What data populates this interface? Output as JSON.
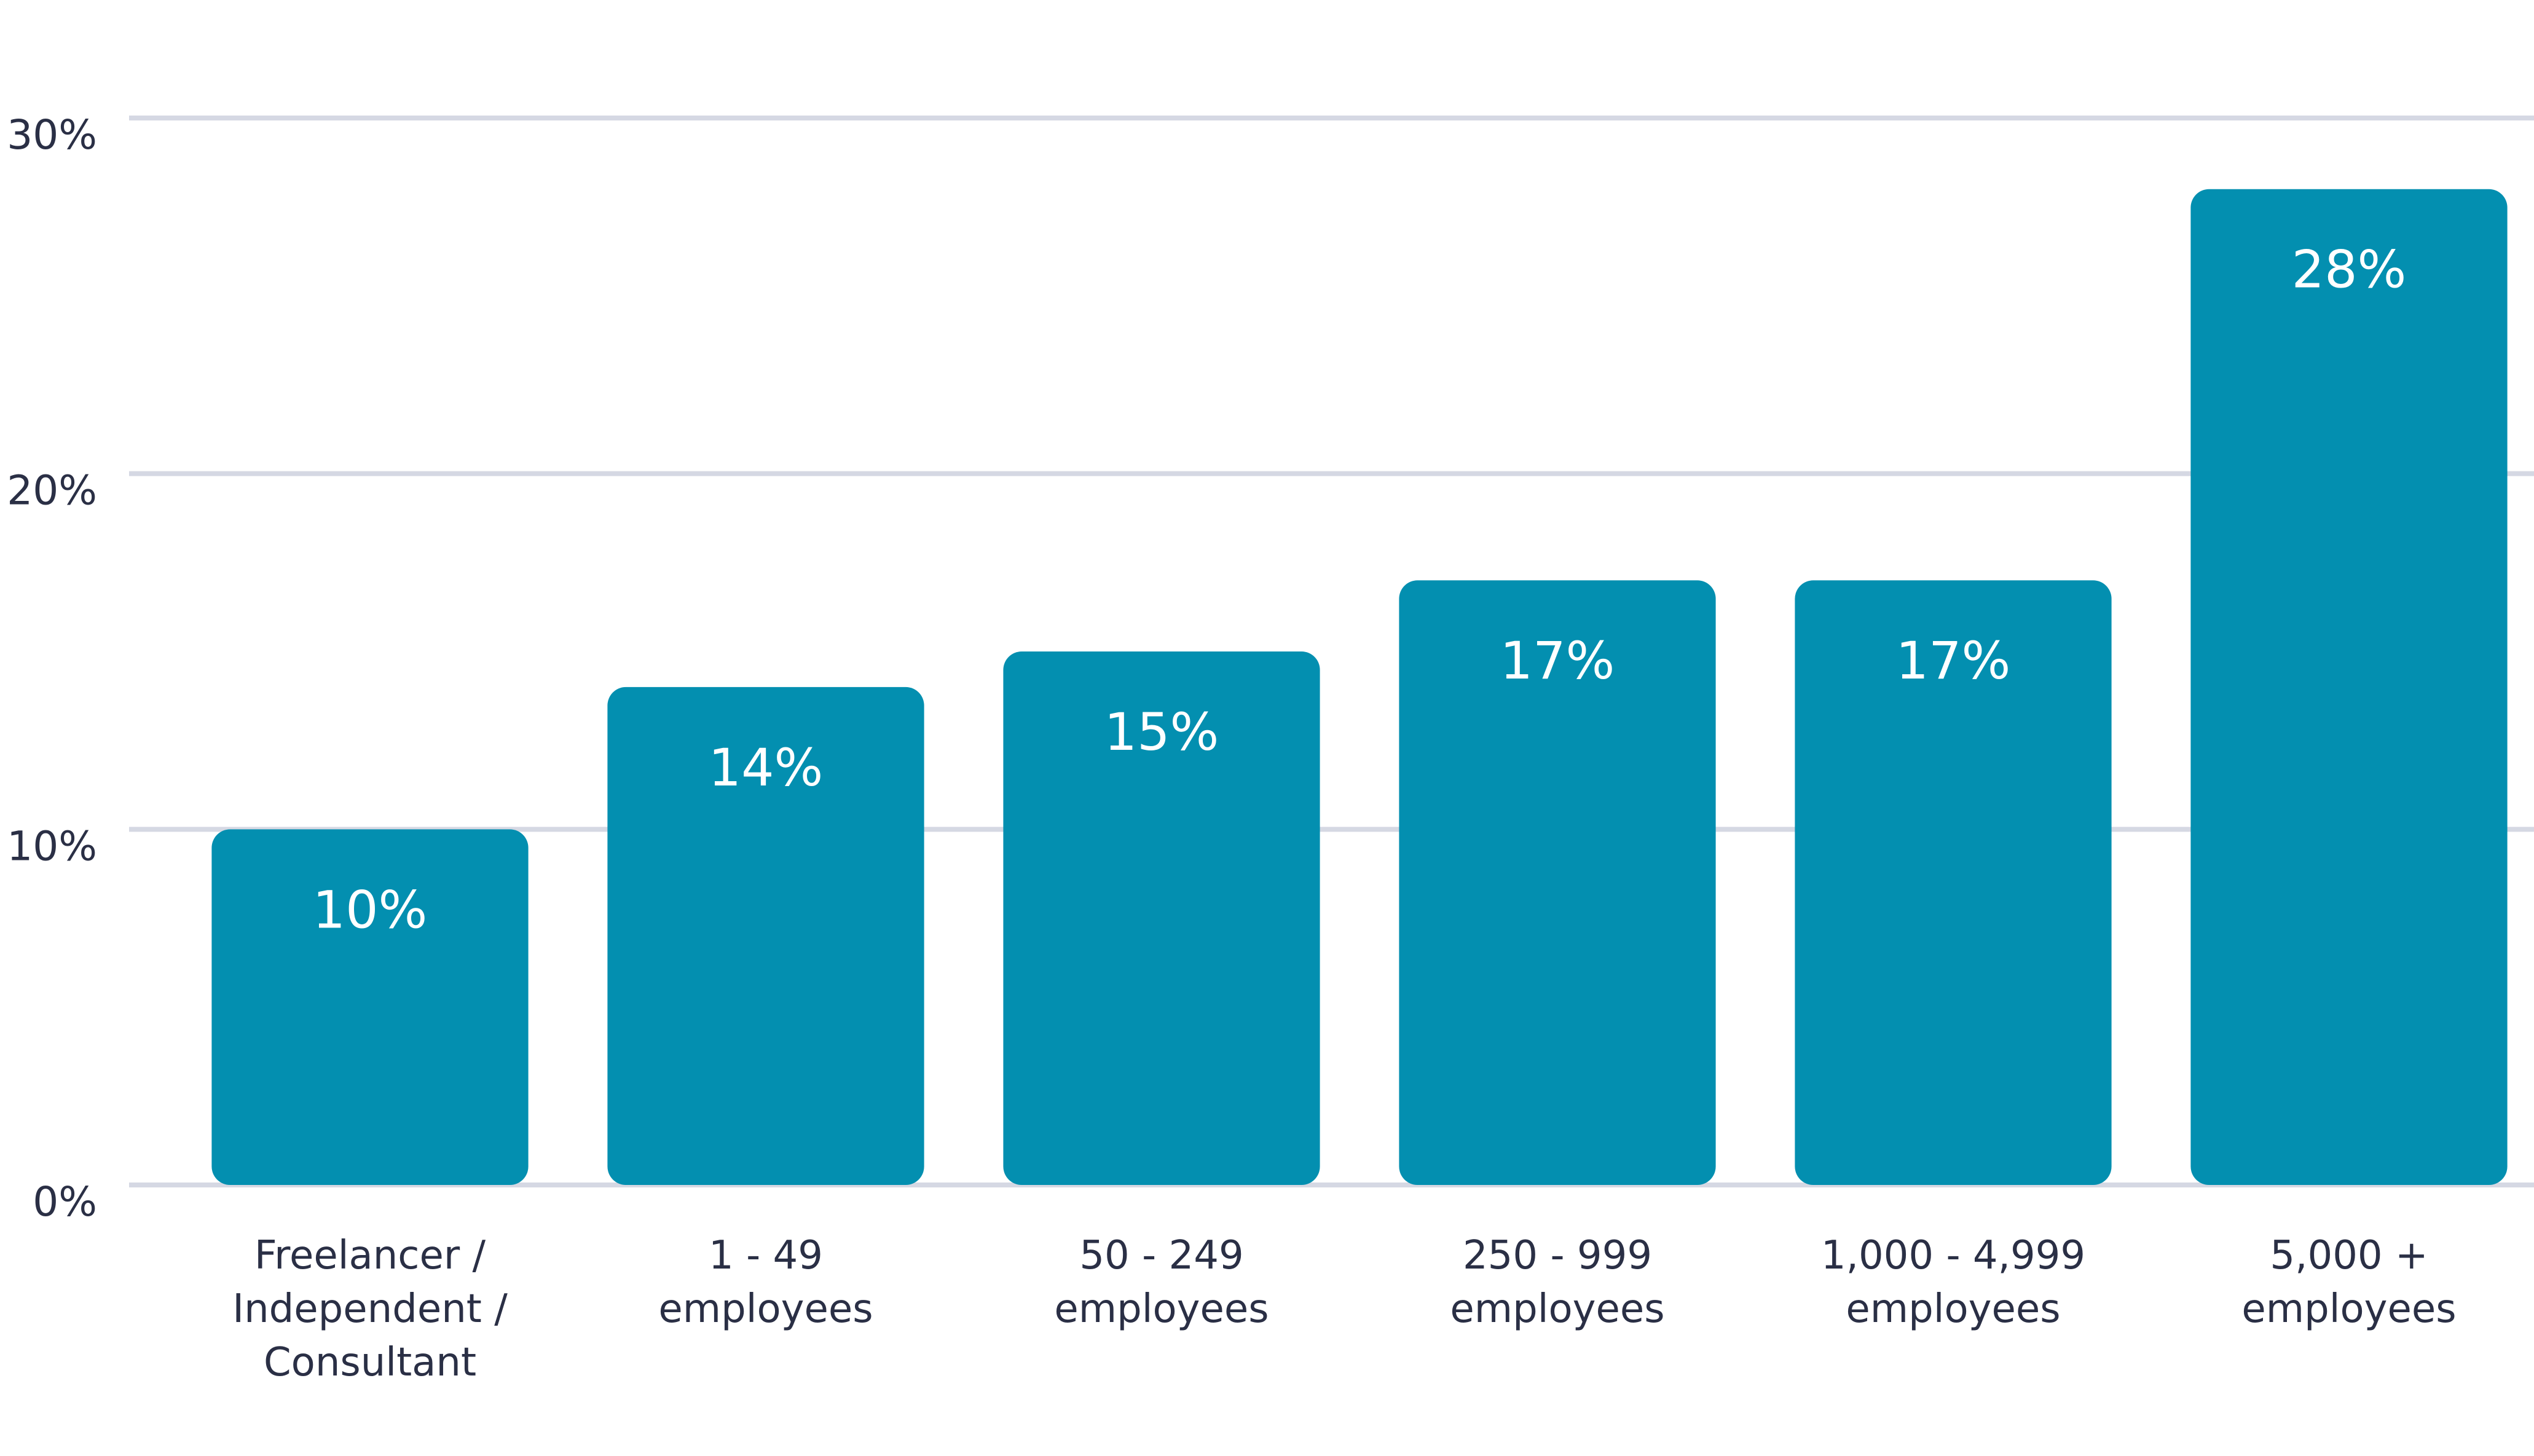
{
  "chart_data": {
    "type": "bar",
    "categories": [
      "Freelancer / Independent / Consultant",
      "1 - 49 employees",
      "50 - 249 employees",
      "250 - 999 employees",
      "1,000 - 4,999 employees",
      "5,000 + employees"
    ],
    "values": [
      10,
      14,
      15,
      17,
      17,
      28
    ],
    "value_labels": [
      "10%",
      "14%",
      "15%",
      "17%",
      "17%",
      "28%"
    ],
    "color": "#038fb0",
    "ylim": [
      0,
      30
    ],
    "yticks": [
      {
        "value": 0,
        "label": "0%"
      },
      {
        "value": 10,
        "label": "10%"
      },
      {
        "value": 20,
        "label": "20%"
      },
      {
        "value": 30,
        "label": "30%"
      }
    ],
    "grid": true
  }
}
